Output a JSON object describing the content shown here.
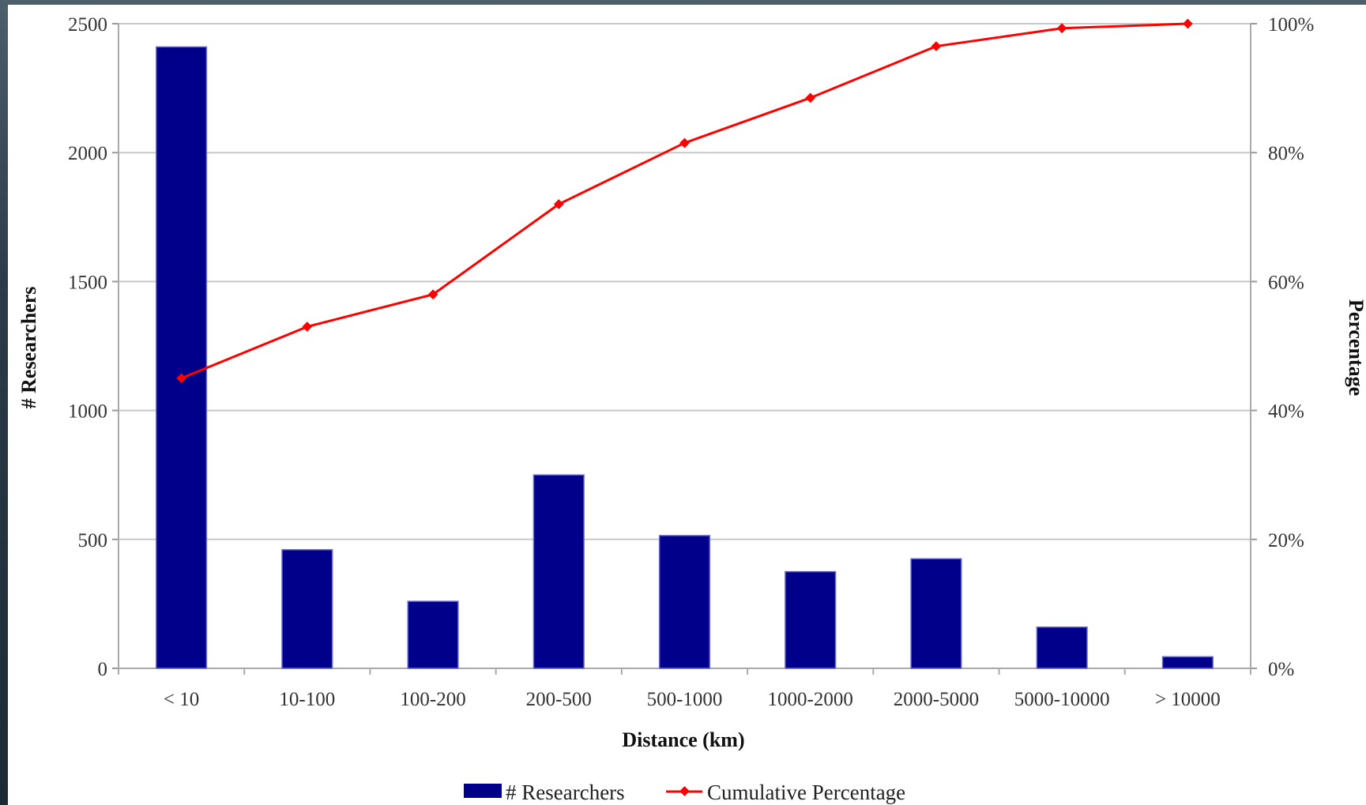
{
  "chart_data": {
    "type": "bar",
    "title": "",
    "xlabel": "Distance (km)",
    "ylabel": "# Researchers",
    "y2label": "Percentage",
    "categories": [
      "< 10",
      "10-100",
      "100-200",
      "200-500",
      "500-1000",
      "1000-2000",
      "2000-5000",
      "5000-10000",
      "> 10000"
    ],
    "ylim": [
      0,
      2500
    ],
    "yticks": [
      "0",
      "500",
      "1000",
      "1500",
      "2000",
      "2500"
    ],
    "y2lim": [
      0,
      100
    ],
    "y2ticks": [
      "0%",
      "20%",
      "40%",
      "60%",
      "80%",
      "100%"
    ],
    "grid": true,
    "legend_position": "bottom",
    "series": [
      {
        "name": "# Researchers",
        "type": "bar",
        "axis": "left",
        "color": "#00008b",
        "values": [
          2410,
          460,
          260,
          750,
          515,
          375,
          425,
          160,
          45
        ]
      },
      {
        "name": "Cumulative Percentage",
        "type": "line",
        "axis": "right",
        "color": "#ff0000",
        "values": [
          45,
          53,
          58,
          72,
          81.5,
          88.5,
          96.5,
          99.3,
          100
        ]
      }
    ]
  }
}
